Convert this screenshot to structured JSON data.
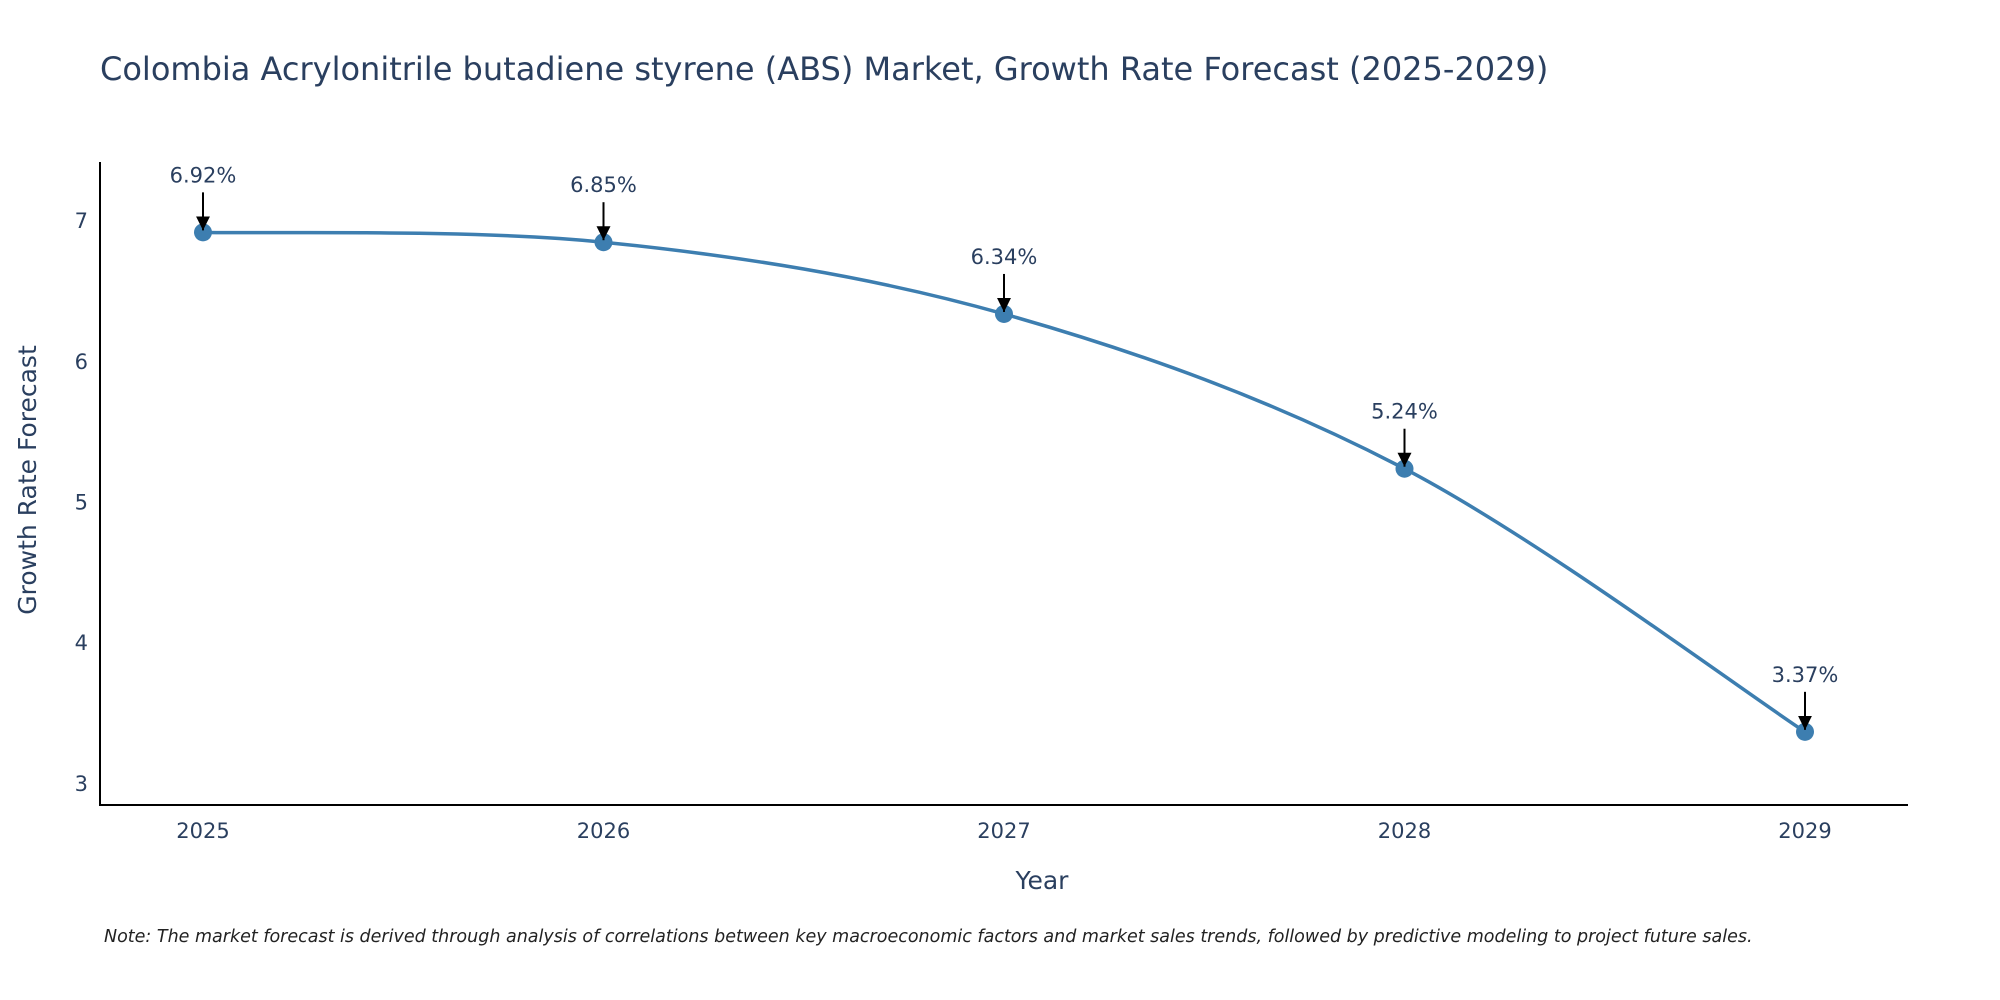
{
  "chart_data": {
    "type": "line",
    "title": "Colombia Acrylonitrile butadiene styrene (ABS) Market, Growth Rate Forecast (2025-2029)",
    "xlabel": "Year",
    "ylabel": "Growth Rate Forecast",
    "categories": [
      "2025",
      "2026",
      "2027",
      "2028",
      "2029"
    ],
    "series": [
      {
        "name": "Growth Rate Forecast",
        "values": [
          6.92,
          6.85,
          6.34,
          5.24,
          3.37
        ],
        "color": "#3d7eb0"
      }
    ],
    "data_labels": [
      "6.92%",
      "6.85%",
      "6.34%",
      "5.24%",
      "3.37%"
    ],
    "ylim": [
      2.85,
      7.42
    ],
    "yticks": [
      3,
      4,
      5,
      6,
      7
    ],
    "ytick_labels": [
      "3",
      "4",
      "5",
      "6",
      "7"
    ],
    "grid": false,
    "line_shape": "spline",
    "annotation_color": "#000000"
  },
  "note": "Note: The market forecast is derived through analysis of correlations between key macroeconomic factors and market sales trends, followed by predictive modeling to project future sales."
}
